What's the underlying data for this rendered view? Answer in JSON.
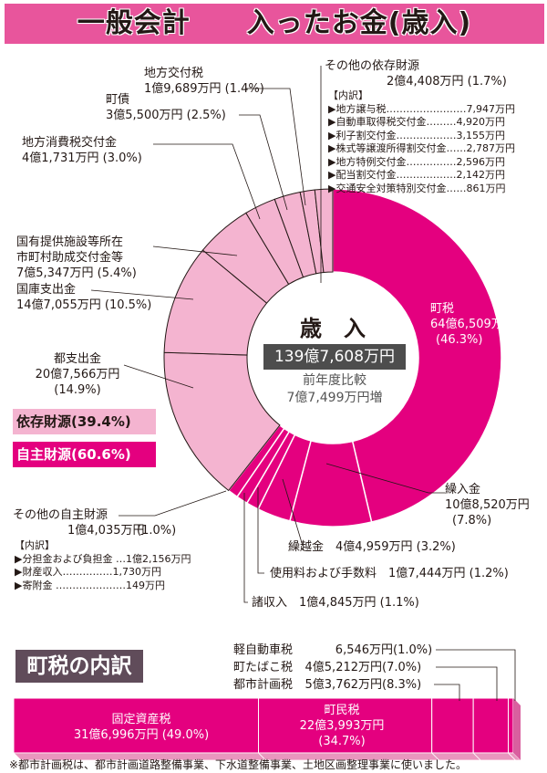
{
  "title": "一般会計　　入ったお金(歳入)",
  "center": {
    "heading": "歳　入",
    "total": "139億7,608万円",
    "compare_label": "前年度比較",
    "compare_value": "7億7,499万円増"
  },
  "groups": {
    "dependent": "依存財源(39.4%)",
    "own": "自主財源(60.6%)"
  },
  "colors": {
    "own": "#e4007f",
    "dependent": "#f4b4d0",
    "title_bar": "#e8559c"
  },
  "chart_data": {
    "type": "pie",
    "title": "歳入",
    "unit": "%",
    "slices": [
      {
        "name": "町税",
        "amount": "64億6,509万円",
        "pct": 46.3,
        "group": "own",
        "pct_label": "(46.3%)"
      },
      {
        "name": "繰入金",
        "amount": "10億8,520万円",
        "pct": 7.8,
        "group": "own",
        "pct_label": "(7.8%)"
      },
      {
        "name": "繰越金",
        "amount": "4億4,959万円",
        "pct": 3.2,
        "group": "own",
        "pct_label": "(3.2%)"
      },
      {
        "name": "使用料および手数料",
        "amount": "1億7,444万円",
        "pct": 1.2,
        "group": "own",
        "pct_label": "(1.2%)"
      },
      {
        "name": "諸収入",
        "amount": "1億4,845万円",
        "pct": 1.1,
        "group": "own",
        "pct_label": "(1.1%)"
      },
      {
        "name": "その他の自主財源",
        "amount": "1億4,035万円",
        "pct": 1.0,
        "group": "own",
        "pct_label": "(1.0%)"
      },
      {
        "name": "都支出金",
        "amount": "20億7,566万円",
        "pct": 14.9,
        "group": "dependent",
        "pct_label": "(14.9%)"
      },
      {
        "name": "国庫支出金",
        "amount": "14億7,055万円",
        "pct": 10.5,
        "group": "dependent",
        "pct_label": "(10.5%)"
      },
      {
        "name": "国有提供施設等所在",
        "name2": "市町村助成交付金等",
        "amount": "7億5,347万円",
        "pct": 5.4,
        "group": "dependent",
        "pct_label": "(5.4%)"
      },
      {
        "name": "地方消費税交付金",
        "amount": "4億1,731万円",
        "pct": 3.0,
        "group": "dependent",
        "pct_label": "(3.0%)"
      },
      {
        "name": "町債",
        "amount": "3億5,500万円",
        "pct": 2.5,
        "group": "dependent",
        "pct_label": "(2.5%)"
      },
      {
        "name": "地方交付税",
        "amount": "1億9,689万円",
        "pct": 1.4,
        "group": "dependent",
        "pct_label": "(1.4%)"
      },
      {
        "name": "その他の依存財源",
        "amount": "2億4,408万円",
        "pct": 1.7,
        "group": "dependent",
        "pct_label": "(1.7%)"
      }
    ]
  },
  "other_dependent_breakdown": {
    "heading": "【内訳】",
    "items": [
      "▶地方譲与税……………………7,947万円",
      "▶自動車取得税交付金………4,920万円",
      "▶利子割交付金………………3,155万円",
      "▶株式等譲渡所得割交付金……2,787万円",
      "▶地方特例交付金……………2,596万円",
      "▶配当割交付金………………2,142万円",
      "▶交通安全対策特別交付金……861万円"
    ]
  },
  "other_own_breakdown": {
    "heading": "【内訳】",
    "items": [
      "▶分担金および負担金 …1億2,156万円",
      "▶財産収入……………1,730万円",
      "▶寄附金 …………………149万円"
    ]
  },
  "town_tax": {
    "title": "町税の内訳",
    "items": [
      {
        "name": "固定資産税",
        "amount": "31億6,996万円",
        "pct": 49.0,
        "pct_label": "(49.0%)"
      },
      {
        "name": "町民税",
        "amount": "22億3,993万円",
        "pct": 34.7,
        "pct_label": "(34.7%)"
      },
      {
        "name": "都市計画税",
        "amount": "5億3,762万円",
        "pct": 8.3,
        "pct_label": "(8.3%)"
      },
      {
        "name": "町たばこ税",
        "amount": "4億5,212万円",
        "pct": 7.0,
        "pct_label": "(7.0%)"
      },
      {
        "name": "軽自動車税",
        "amount": "6,546万円",
        "pct": 1.0,
        "pct_label": "(1.0%)"
      }
    ],
    "note": "※都市計画税は、都市計画道路整備事業、下水道整備事業、土地区画整理事業に使いました。"
  }
}
